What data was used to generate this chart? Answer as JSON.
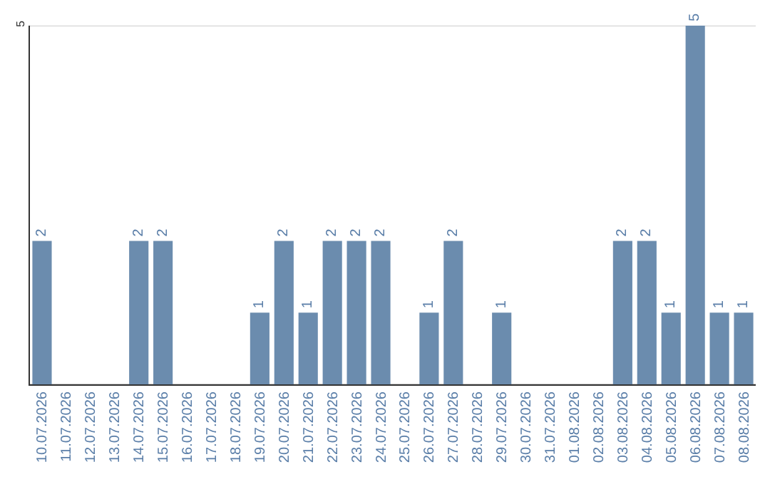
{
  "chart_data": {
    "type": "bar",
    "categories": [
      "10.07.2026",
      "11.07.2026",
      "12.07.2026",
      "13.07.2026",
      "14.07.2026",
      "15.07.2026",
      "16.07.2026",
      "17.07.2026",
      "18.07.2026",
      "19.07.2026",
      "20.07.2026",
      "21.07.2026",
      "22.07.2026",
      "23.07.2026",
      "24.07.2026",
      "25.07.2026",
      "26.07.2026",
      "27.07.2026",
      "28.07.2026",
      "29.07.2026",
      "30.07.2026",
      "31.07.2026",
      "01.08.2026",
      "02.08.2026",
      "03.08.2026",
      "04.08.2026",
      "05.08.2026",
      "06.08.2026",
      "07.08.2026",
      "08.08.2026"
    ],
    "values": [
      2,
      0,
      0,
      0,
      2,
      2,
      0,
      0,
      0,
      1,
      2,
      1,
      2,
      2,
      2,
      0,
      1,
      2,
      0,
      1,
      0,
      0,
      0,
      0,
      2,
      2,
      1,
      5,
      1,
      1
    ],
    "value_labels": [
      "2",
      null,
      null,
      null,
      "2",
      "2",
      null,
      null,
      null,
      "1",
      "2",
      "1",
      "2",
      "2",
      "2",
      null,
      "1",
      "2",
      null,
      "1",
      null,
      null,
      null,
      null,
      "2",
      "2",
      "1",
      "5",
      "1",
      "1"
    ],
    "color": "#6b8cae",
    "ylim": [
      0,
      5
    ],
    "yticks": [
      {
        "value": 0,
        "label": null
      },
      5
    ],
    "grid": "y",
    "legend": false
  }
}
